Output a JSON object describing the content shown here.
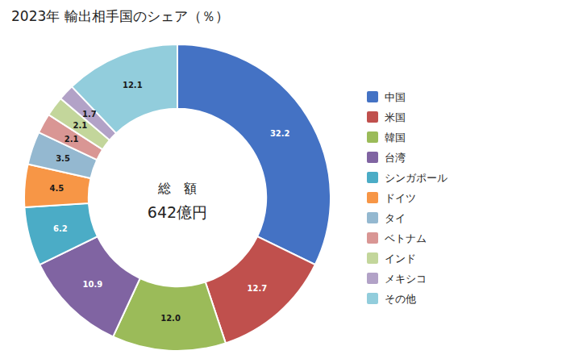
{
  "chart_data": {
    "type": "donut",
    "title": "2023年 輸出相手国のシェア（％）",
    "annotations": [
      "総　額",
      "642億円"
    ],
    "categories": [
      "中国",
      "米国",
      "韓国",
      "台湾",
      "シンガポール",
      "ドイツ",
      "タイ",
      "ベトナム",
      "インド",
      "メキシコ",
      "その他"
    ],
    "values": [
      32.2,
      12.7,
      12.0,
      10.9,
      6.2,
      4.5,
      3.5,
      2.1,
      2.1,
      1.7,
      12.1
    ],
    "value_labels": [
      "32.2",
      "12.7",
      "12.0",
      "10.9",
      "6.2",
      "4.5",
      "3.5",
      "2.1",
      "2.1",
      "1.7",
      "12.1"
    ],
    "colors": [
      "#4472C4",
      "#C0504D",
      "#9BBB59",
      "#8064A2",
      "#4BACC6",
      "#F79646",
      "#94B8D0",
      "#D99694",
      "#C3D69B",
      "#B2A2C7",
      "#92CDDC"
    ],
    "data_labels": true,
    "legend": "right"
  }
}
